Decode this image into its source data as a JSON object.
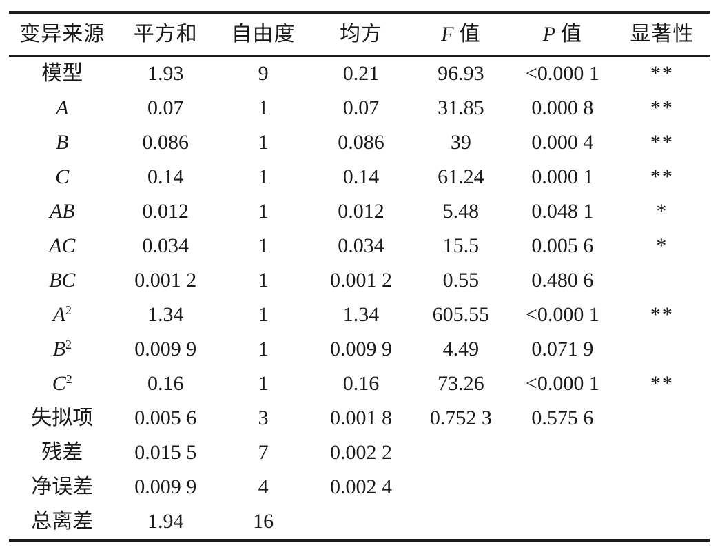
{
  "page": {
    "background_color": "#ffffff",
    "text_color": "#1a1a1a",
    "rule_color": "#1c1c1c"
  },
  "table": {
    "kind": "anova-significance-table",
    "columns": [
      {
        "key": "source",
        "italic_prefix": "",
        "label": "变异来源"
      },
      {
        "key": "sum-of-squares",
        "italic_prefix": "",
        "label": "平方和"
      },
      {
        "key": "degrees-of-freedom",
        "italic_prefix": "",
        "label": "自由度"
      },
      {
        "key": "mean-square",
        "italic_prefix": "",
        "label": "均方"
      },
      {
        "key": "f-value",
        "italic_prefix": "F",
        "label": "值"
      },
      {
        "key": "p-value",
        "italic_prefix": "P",
        "label": "值"
      },
      {
        "key": "significance",
        "italic_prefix": "",
        "label": "显著性"
      }
    ],
    "column_widths_percent": [
      15.2,
      14.3,
      13.6,
      14.3,
      14.2,
      14.8,
      13.6
    ],
    "rows": [
      {
        "source": {
          "base": "模型",
          "sup": "",
          "italic": false
        },
        "values": [
          "1.93",
          "9",
          "0.21",
          "96.93",
          "<0.000 1",
          "**"
        ]
      },
      {
        "source": {
          "base": "A",
          "sup": "",
          "italic": true
        },
        "values": [
          "0.07",
          "1",
          "0.07",
          "31.85",
          "0.000 8",
          "**"
        ]
      },
      {
        "source": {
          "base": "B",
          "sup": "",
          "italic": true
        },
        "values": [
          "0.086",
          "1",
          "0.086",
          "39",
          "0.000 4",
          "**"
        ]
      },
      {
        "source": {
          "base": "C",
          "sup": "",
          "italic": true
        },
        "values": [
          "0.14",
          "1",
          "0.14",
          "61.24",
          "0.000 1",
          "**"
        ]
      },
      {
        "source": {
          "base": "AB",
          "sup": "",
          "italic": true
        },
        "values": [
          "0.012",
          "1",
          "0.012",
          "5.48",
          "0.048 1",
          "*"
        ]
      },
      {
        "source": {
          "base": "AC",
          "sup": "",
          "italic": true
        },
        "values": [
          "0.034",
          "1",
          "0.034",
          "15.5",
          "0.005 6",
          "*"
        ]
      },
      {
        "source": {
          "base": "BC",
          "sup": "",
          "italic": true
        },
        "values": [
          "0.001 2",
          "1",
          "0.001 2",
          "0.55",
          "0.480 6",
          ""
        ]
      },
      {
        "source": {
          "base": "A",
          "sup": "2",
          "italic": true
        },
        "values": [
          "1.34",
          "1",
          "1.34",
          "605.55",
          "<0.000 1",
          "**"
        ]
      },
      {
        "source": {
          "base": "B",
          "sup": "2",
          "italic": true
        },
        "values": [
          "0.009 9",
          "1",
          "0.009 9",
          "4.49",
          "0.071 9",
          ""
        ]
      },
      {
        "source": {
          "base": "C",
          "sup": "2",
          "italic": true
        },
        "values": [
          "0.16",
          "1",
          "0.16",
          "73.26",
          "<0.000 1",
          "**"
        ]
      },
      {
        "source": {
          "base": "失拟项",
          "sup": "",
          "italic": false
        },
        "values": [
          "0.005 6",
          "3",
          "0.001 8",
          "0.752 3",
          "0.575 6",
          ""
        ]
      },
      {
        "source": {
          "base": "残差",
          "sup": "",
          "italic": false
        },
        "values": [
          "0.015 5",
          "7",
          "0.002 2",
          "",
          "",
          ""
        ]
      },
      {
        "source": {
          "base": "净误差",
          "sup": "",
          "italic": false
        },
        "values": [
          "0.009 9",
          "4",
          "0.002 4",
          "",
          "",
          ""
        ]
      },
      {
        "source": {
          "base": "总离差",
          "sup": "",
          "italic": false
        },
        "values": [
          "1.94",
          "16",
          "",
          "",
          "",
          ""
        ]
      }
    ]
  }
}
